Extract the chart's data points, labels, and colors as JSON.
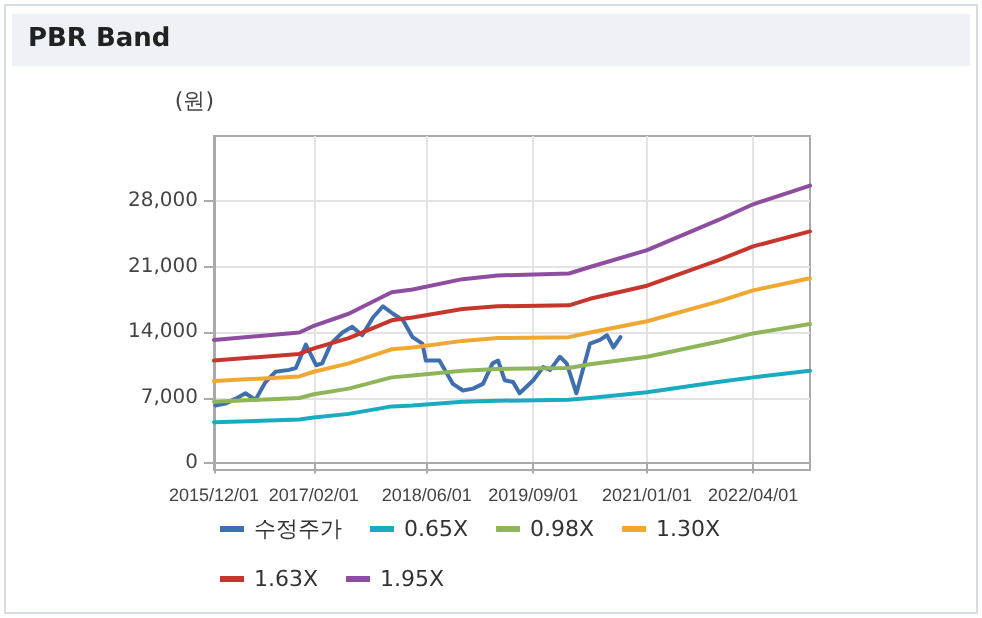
{
  "chart_data": {
    "type": "line",
    "title": "PBR Band",
    "ylabel": "(원)",
    "xlim": [
      "2015-12-01",
      "2022-12-01"
    ],
    "xticks": [
      {
        "value": "2015-12-01",
        "label": "2015/12/01"
      },
      {
        "value": "2017-02-01",
        "label": "2017/02/01"
      },
      {
        "value": "2018-06-01",
        "label": "2018/06/01"
      },
      {
        "value": "2019-09-01",
        "label": "2019/09/01"
      },
      {
        "value": "2021-01-01",
        "label": "2021/01/01"
      },
      {
        "value": "2022-04-01",
        "label": "2022/04/01"
      }
    ],
    "ylim": [
      -700,
      35000
    ],
    "yticks": [
      {
        "value": 0,
        "label": "0"
      },
      {
        "value": 7000,
        "label": "7,000"
      },
      {
        "value": 14000,
        "label": "14,000"
      },
      {
        "value": 21000,
        "label": "21,000"
      },
      {
        "value": 28000,
        "label": "28,000"
      }
    ],
    "grid": true,
    "legend": "bottom",
    "marker": "none",
    "line_style": "solid",
    "series": [
      {
        "name": "수정주가",
        "color": "#3f6fae",
        "x": [
          "2015-12-07",
          "2016-01-19",
          "2016-03-01",
          "2016-04-14",
          "2016-05-27",
          "2016-07-09",
          "2016-08-21",
          "2016-10-18",
          "2016-11-16",
          "2016-12-29",
          "2017-02-11",
          "2017-03-09",
          "2017-04-16",
          "2017-06-04",
          "2017-07-16",
          "2017-08-28",
          "2017-10-13",
          "2017-11-25",
          "2018-01-07",
          "2018-02-19",
          "2018-04-01",
          "2018-05-13",
          "2018-05-28",
          "2018-07-25",
          "2018-09-21",
          "2018-11-03",
          "2018-12-16",
          "2019-01-28",
          "2019-03-10",
          "2019-04-03",
          "2019-05-01",
          "2019-06-06",
          "2019-07-04",
          "2019-09-01",
          "2019-10-13",
          "2019-11-12",
          "2019-12-24",
          "2020-01-22",
          "2020-03-04",
          "2020-05-01",
          "2020-06-13",
          "2020-07-13",
          "2020-08-10",
          "2020-09-09"
        ],
        "values": [
          6200,
          6400,
          6900,
          7500,
          6800,
          8700,
          9800,
          10000,
          10200,
          12700,
          10500,
          10700,
          12800,
          14000,
          14600,
          13700,
          15600,
          16800,
          16000,
          15300,
          13500,
          12800,
          11000,
          11000,
          8500,
          7800,
          8000,
          8500,
          10700,
          11000,
          8900,
          8700,
          7500,
          8900,
          10300,
          10000,
          11400,
          10700,
          7500,
          12800,
          13200,
          13700,
          12400,
          13500
        ]
      },
      {
        "name": "0.65X",
        "color": "#1aabc0",
        "x": [
          "2015-12-01",
          "2016-12-01",
          "2017-02-01",
          "2017-07-01",
          "2018-01-01",
          "2018-04-01",
          "2018-11-01",
          "2019-04-01",
          "2020-02-01",
          "2020-05-01",
          "2021-01-01",
          "2021-11-01",
          "2022-04-01",
          "2022-12-01"
        ],
        "values": [
          4400,
          4700,
          4900,
          5300,
          6100,
          6200,
          6600,
          6700,
          6800,
          7000,
          7600,
          8700,
          9200,
          9900
        ]
      },
      {
        "name": "0.98X",
        "color": "#8fb559",
        "x": [
          "2015-12-01",
          "2016-12-01",
          "2017-02-01",
          "2017-07-01",
          "2018-01-01",
          "2018-04-01",
          "2018-11-01",
          "2019-04-01",
          "2020-02-01",
          "2020-05-01",
          "2021-01-01",
          "2021-11-01",
          "2022-04-01",
          "2022-12-01"
        ],
        "values": [
          6600,
          7000,
          7400,
          8000,
          9200,
          9400,
          9900,
          10100,
          10200,
          10600,
          11400,
          13000,
          13900,
          14900
        ]
      },
      {
        "name": "1.30X",
        "color": "#f0a830",
        "x": [
          "2015-12-01",
          "2016-12-01",
          "2017-02-01",
          "2017-07-01",
          "2018-01-01",
          "2018-04-01",
          "2018-11-01",
          "2019-04-01",
          "2020-02-01",
          "2020-05-01",
          "2021-01-01",
          "2021-11-01",
          "2022-04-01",
          "2022-12-01"
        ],
        "values": [
          8800,
          9300,
          9800,
          10700,
          12200,
          12400,
          13100,
          13400,
          13500,
          14000,
          15200,
          17300,
          18500,
          19800
        ]
      },
      {
        "name": "1.63X",
        "color": "#c8352c",
        "x": [
          "2015-12-01",
          "2016-12-01",
          "2017-02-01",
          "2017-07-01",
          "2018-01-01",
          "2018-04-01",
          "2018-11-01",
          "2019-04-01",
          "2020-02-01",
          "2020-05-01",
          "2021-01-01",
          "2021-11-01",
          "2022-04-01",
          "2022-12-01"
        ],
        "values": [
          11000,
          11700,
          12300,
          13400,
          15300,
          15600,
          16500,
          16800,
          16900,
          17600,
          19000,
          21700,
          23200,
          24800
        ]
      },
      {
        "name": "1.95X",
        "color": "#8e4ea0",
        "x": [
          "2015-12-01",
          "2016-12-01",
          "2017-02-01",
          "2017-07-01",
          "2018-01-01",
          "2018-04-01",
          "2018-11-01",
          "2019-04-01",
          "2020-02-01",
          "2020-05-01",
          "2021-01-01",
          "2021-11-01",
          "2022-04-01",
          "2022-12-01"
        ],
        "values": [
          13200,
          14000,
          14700,
          16000,
          18300,
          18600,
          19700,
          20100,
          20300,
          21000,
          22800,
          26000,
          27700,
          29700
        ]
      }
    ]
  }
}
